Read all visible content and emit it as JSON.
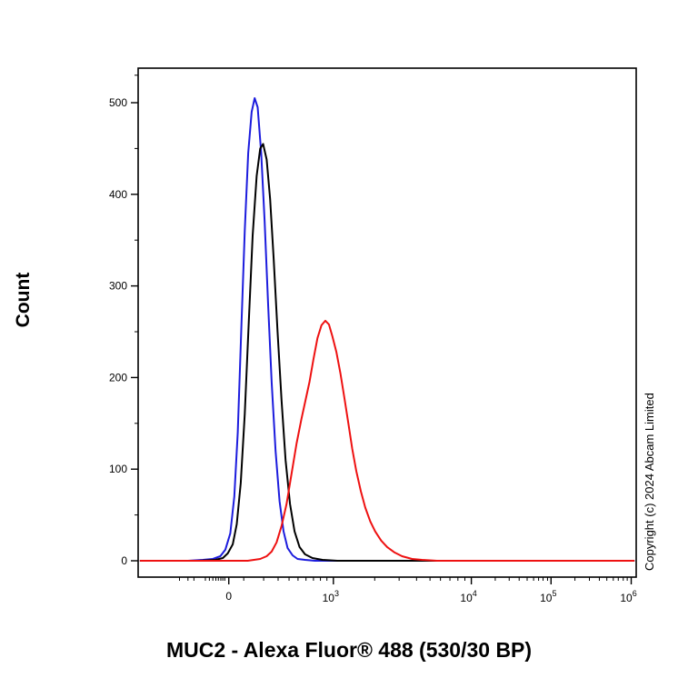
{
  "annotations": {
    "copyright": "Copyright (c) 2024 Abcam Limited"
  },
  "chart_data": {
    "type": "line",
    "chart_kind": "flow-cytometry-histogram",
    "title": "",
    "xlabel": "MUC2 - Alexa Fluor® 488 (530/30 BP)",
    "ylabel": "Count",
    "ylim": [
      0,
      535
    ],
    "grid": false,
    "legend": "none",
    "frame_color": "#000000",
    "y_axis": {
      "major_ticks": [
        0,
        100,
        200,
        300,
        400,
        500
      ],
      "minor_ticks": [
        50,
        150,
        250,
        350,
        450,
        530
      ]
    },
    "x_axis": {
      "scale": "biexponential",
      "major_ticks": [
        {
          "label": "0",
          "pos": 0.182
        },
        {
          "base": "10",
          "exp": "3",
          "pos": 0.392
        },
        {
          "base": "10",
          "exp": "4",
          "pos": 0.669
        },
        {
          "base": "10",
          "exp": "5",
          "pos": 0.829
        },
        {
          "base": "10",
          "exp": "6",
          "pos": 0.99
        }
      ],
      "minor_tick_positions": [
        0.083,
        0.1,
        0.112,
        0.135,
        0.143,
        0.15,
        0.156,
        0.161,
        0.166,
        0.17,
        0.174,
        0.212,
        0.252,
        0.281,
        0.303,
        0.321,
        0.337,
        0.352,
        0.366,
        0.379,
        0.475,
        0.524,
        0.559,
        0.586,
        0.607,
        0.626,
        0.642,
        0.656,
        0.717,
        0.745,
        0.765,
        0.781,
        0.794,
        0.804,
        0.813,
        0.822,
        0.877,
        0.906,
        0.926,
        0.941,
        0.954,
        0.964,
        0.974,
        0.982
      ]
    },
    "series": [
      {
        "name": "blue-curve",
        "color": "#1c1cdd",
        "peak_count": 505,
        "points": [
          [
            0.005,
            0
          ],
          [
            0.1,
            0
          ],
          [
            0.13,
            1
          ],
          [
            0.15,
            2
          ],
          [
            0.165,
            5
          ],
          [
            0.175,
            12
          ],
          [
            0.185,
            30
          ],
          [
            0.193,
            70
          ],
          [
            0.2,
            140
          ],
          [
            0.207,
            250
          ],
          [
            0.214,
            360
          ],
          [
            0.221,
            445
          ],
          [
            0.228,
            490
          ],
          [
            0.234,
            505
          ],
          [
            0.24,
            495
          ],
          [
            0.247,
            445
          ],
          [
            0.254,
            370
          ],
          [
            0.261,
            280
          ],
          [
            0.268,
            195
          ],
          [
            0.276,
            120
          ],
          [
            0.284,
            65
          ],
          [
            0.292,
            32
          ],
          [
            0.3,
            14
          ],
          [
            0.31,
            6
          ],
          [
            0.32,
            2
          ],
          [
            0.335,
            1
          ],
          [
            0.355,
            0
          ],
          [
            0.995,
            0
          ]
        ]
      },
      {
        "name": "black-curve",
        "color": "#000000",
        "peak_count": 455,
        "points": [
          [
            0.005,
            0
          ],
          [
            0.12,
            0
          ],
          [
            0.155,
            1
          ],
          [
            0.17,
            3
          ],
          [
            0.18,
            8
          ],
          [
            0.19,
            18
          ],
          [
            0.198,
            40
          ],
          [
            0.206,
            85
          ],
          [
            0.214,
            160
          ],
          [
            0.222,
            260
          ],
          [
            0.23,
            355
          ],
          [
            0.238,
            420
          ],
          [
            0.245,
            450
          ],
          [
            0.251,
            455
          ],
          [
            0.258,
            438
          ],
          [
            0.265,
            395
          ],
          [
            0.272,
            330
          ],
          [
            0.28,
            250
          ],
          [
            0.288,
            175
          ],
          [
            0.296,
            110
          ],
          [
            0.305,
            62
          ],
          [
            0.314,
            32
          ],
          [
            0.324,
            15
          ],
          [
            0.335,
            7
          ],
          [
            0.35,
            3
          ],
          [
            0.37,
            1
          ],
          [
            0.4,
            0
          ],
          [
            0.995,
            0
          ]
        ]
      },
      {
        "name": "red-curve",
        "color": "#ee1111",
        "peak_count": 262,
        "points": [
          [
            0.005,
            0
          ],
          [
            0.22,
            0
          ],
          [
            0.245,
            2
          ],
          [
            0.258,
            5
          ],
          [
            0.268,
            10
          ],
          [
            0.278,
            20
          ],
          [
            0.288,
            38
          ],
          [
            0.298,
            62
          ],
          [
            0.308,
            95
          ],
          [
            0.318,
            128
          ],
          [
            0.328,
            155
          ],
          [
            0.336,
            175
          ],
          [
            0.344,
            195
          ],
          [
            0.352,
            220
          ],
          [
            0.36,
            243
          ],
          [
            0.368,
            257
          ],
          [
            0.376,
            262
          ],
          [
            0.383,
            258
          ],
          [
            0.39,
            245
          ],
          [
            0.398,
            228
          ],
          [
            0.406,
            205
          ],
          [
            0.414,
            178
          ],
          [
            0.422,
            150
          ],
          [
            0.43,
            122
          ],
          [
            0.438,
            98
          ],
          [
            0.447,
            76
          ],
          [
            0.456,
            58
          ],
          [
            0.466,
            43
          ],
          [
            0.476,
            32
          ],
          [
            0.488,
            22
          ],
          [
            0.5,
            15
          ],
          [
            0.515,
            9
          ],
          [
            0.53,
            5
          ],
          [
            0.55,
            2
          ],
          [
            0.57,
            1
          ],
          [
            0.6,
            0
          ],
          [
            0.995,
            0
          ]
        ]
      }
    ]
  }
}
